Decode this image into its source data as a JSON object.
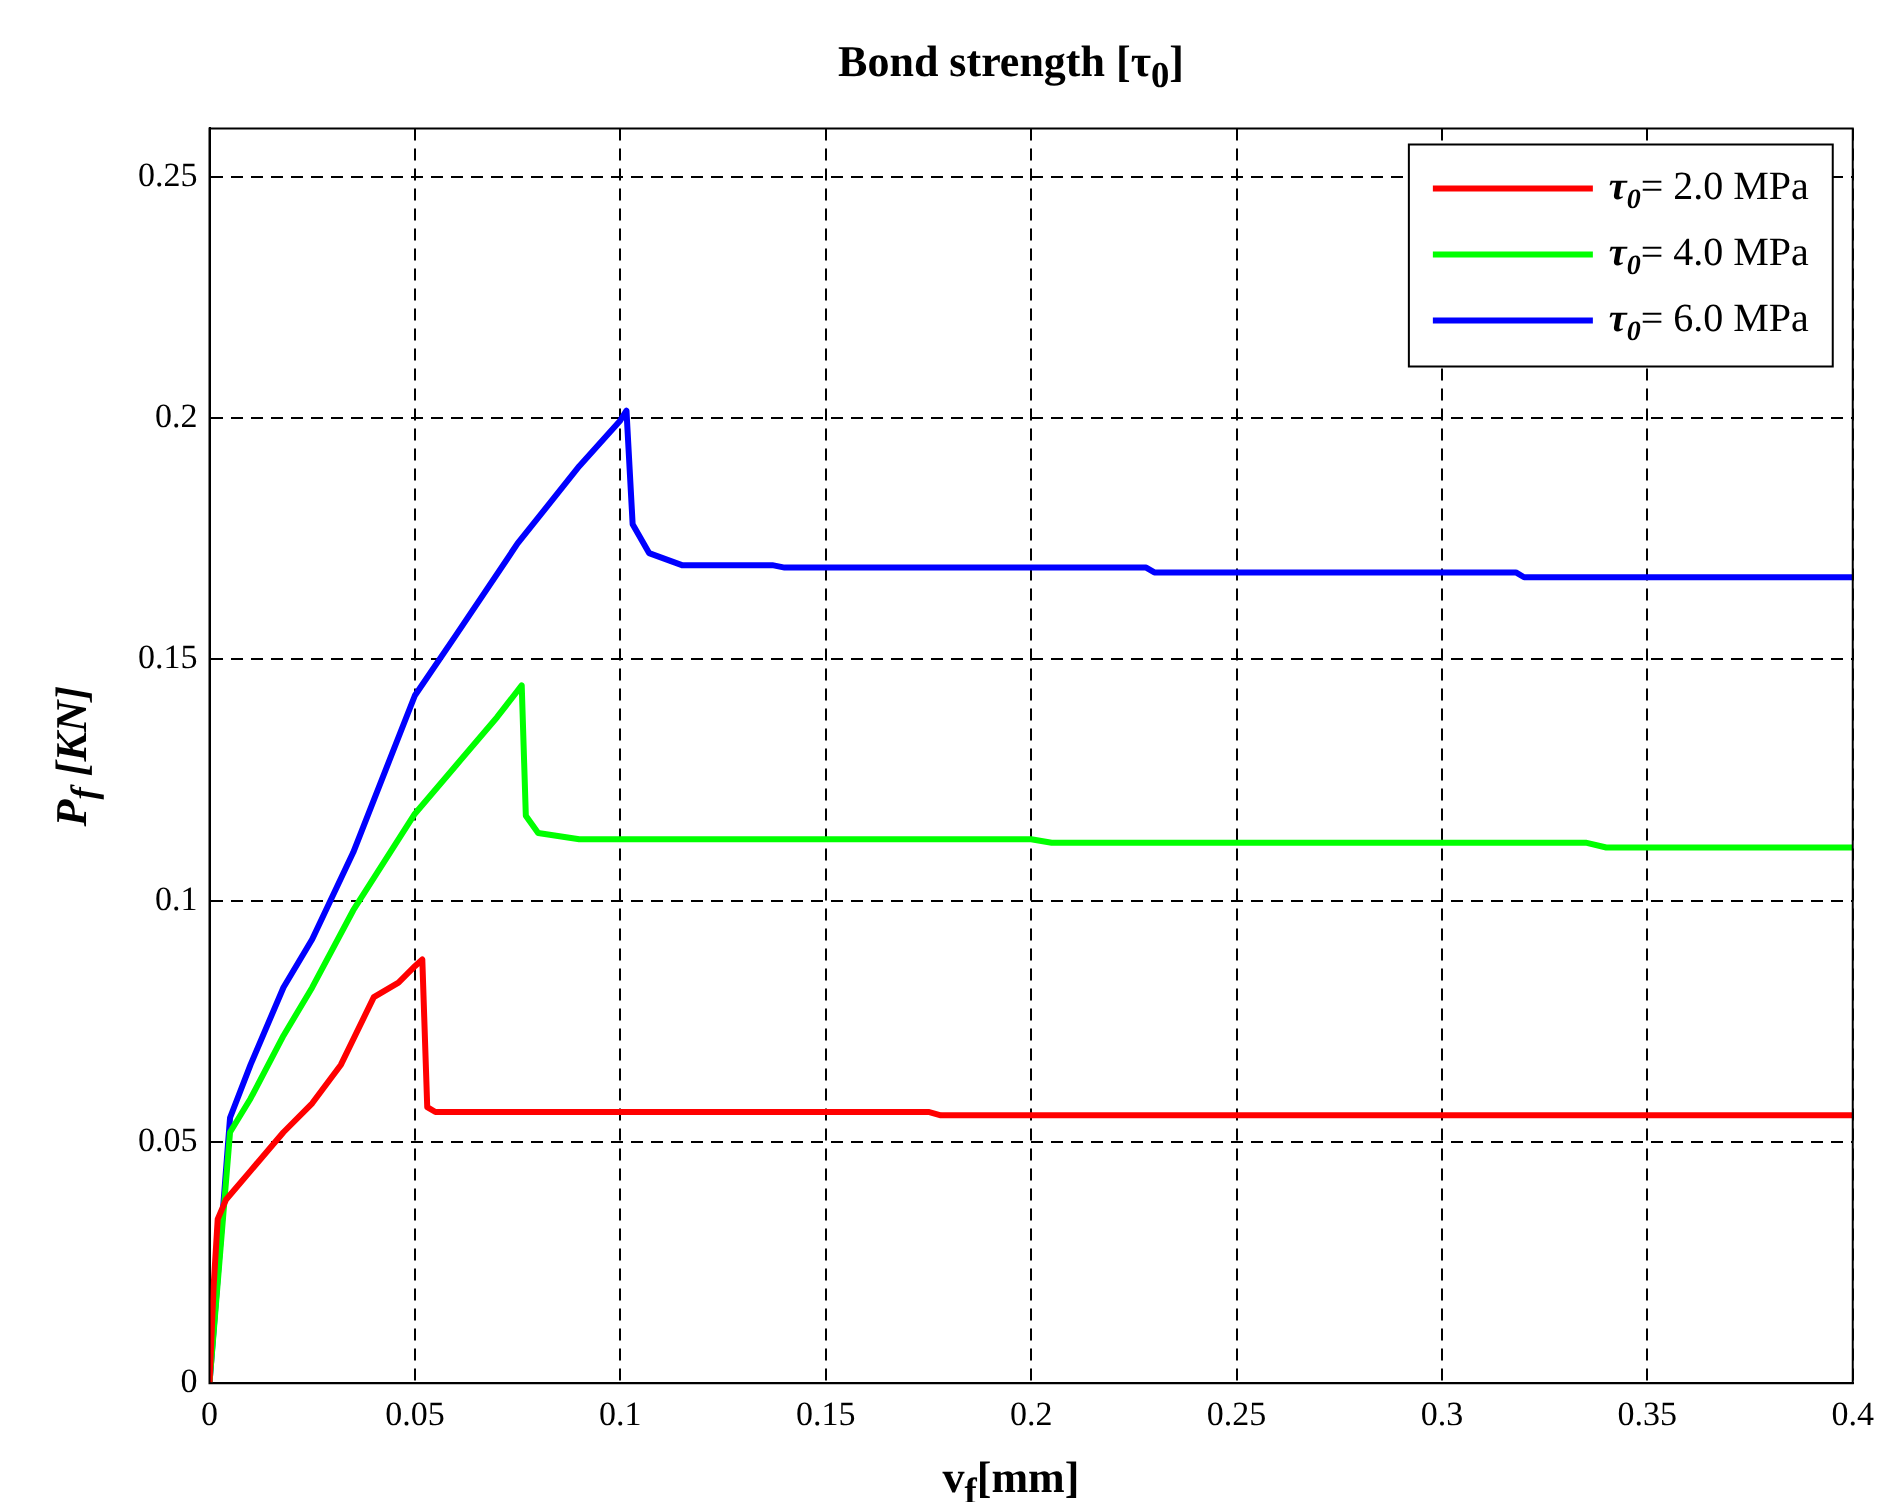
{
  "chart_data": {
    "type": "line",
    "title": "Bond strength [τ$_{0}$]",
    "xlabel": "v$_{f}$[mm]",
    "ylabel": "P$_{f}$ [KN]",
    "xlim": [
      0,
      0.4
    ],
    "ylim": [
      0,
      0.26
    ],
    "xticks": [
      0,
      0.05,
      0.1,
      0.15,
      0.2,
      0.25,
      0.3,
      0.35,
      0.4
    ],
    "yticks": [
      0,
      0.05,
      0.1,
      0.15,
      0.2,
      0.25
    ],
    "grid": true,
    "legend": "top right",
    "line_style": "solid",
    "marker": "none",
    "series": [
      {
        "name": "τ$_{0}$= 2.0 MPa",
        "color": "#ff0000",
        "x": [
          0,
          0.001,
          0.002,
          0.004,
          0.01,
          0.018,
          0.025,
          0.032,
          0.04,
          0.046,
          0.05,
          0.0518,
          0.053,
          0.055,
          0.1,
          0.175,
          0.178,
          0.4
        ],
        "values": [
          0,
          0.02,
          0.034,
          0.038,
          0.044,
          0.052,
          0.058,
          0.066,
          0.08,
          0.083,
          0.0864,
          0.0878,
          0.0572,
          0.0562,
          0.0562,
          0.0562,
          0.0555,
          0.0555
        ]
      },
      {
        "name": "τ$_{0}$= 4.0 MPa",
        "color": "#00ff00",
        "x": [
          0,
          0.005,
          0.01,
          0.018,
          0.025,
          0.035,
          0.05,
          0.06,
          0.07,
          0.076,
          0.077,
          0.08,
          0.09,
          0.2,
          0.205,
          0.335,
          0.34,
          0.4
        ],
        "values": [
          0,
          0.052,
          0.059,
          0.072,
          0.082,
          0.098,
          0.118,
          0.128,
          0.138,
          0.1446,
          0.1176,
          0.114,
          0.1127,
          0.1127,
          0.112,
          0.112,
          0.111,
          0.111
        ]
      },
      {
        "name": "τ$_{0}$= 6.0 MPa",
        "color": "#0000ff",
        "x": [
          0,
          0.005,
          0.01,
          0.018,
          0.025,
          0.035,
          0.05,
          0.06,
          0.075,
          0.09,
          0.1,
          0.1015,
          0.103,
          0.107,
          0.115,
          0.137,
          0.14,
          0.228,
          0.23,
          0.318,
          0.32,
          0.4
        ],
        "values": [
          0,
          0.055,
          0.066,
          0.082,
          0.092,
          0.11,
          0.1425,
          0.155,
          0.174,
          0.19,
          0.1995,
          0.2015,
          0.178,
          0.172,
          0.1695,
          0.1695,
          0.169,
          0.169,
          0.168,
          0.168,
          0.167,
          0.167
        ]
      }
    ]
  }
}
